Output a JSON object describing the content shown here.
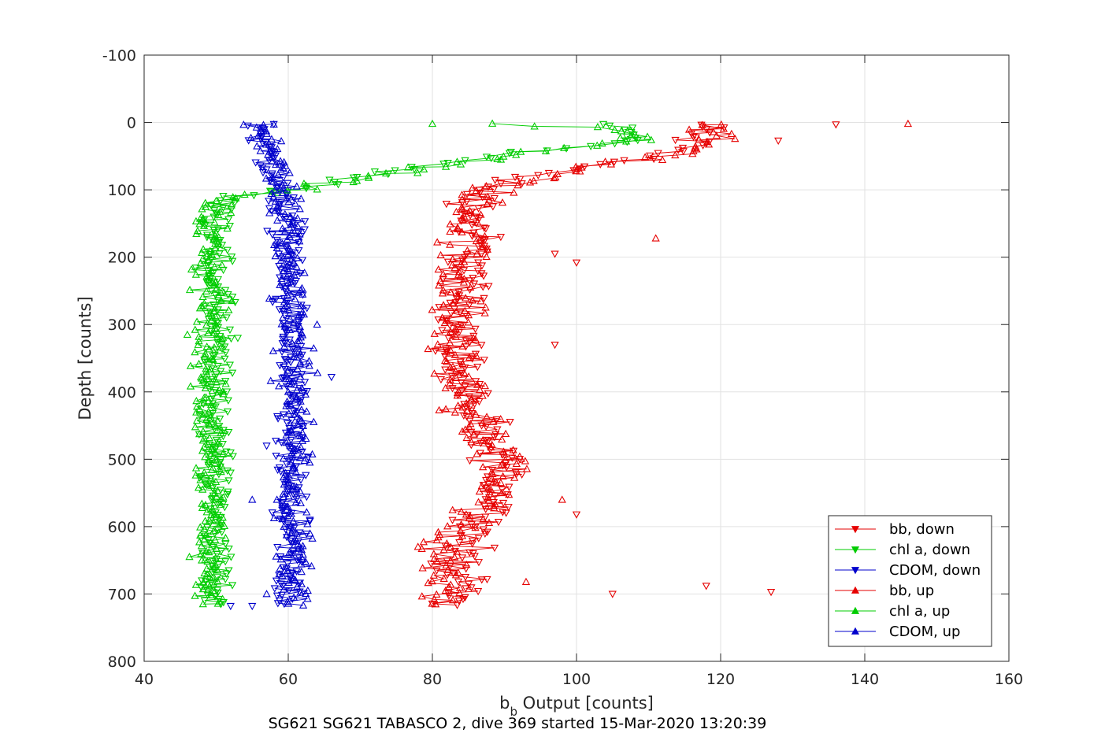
{
  "chart_data": {
    "type": "scatter",
    "title": "",
    "xlabel": "b",
    "xlabel_sub": "b",
    "xlabel_rest": " Output [counts]",
    "ylabel": "Depth [counts]",
    "caption": "SG621 SG621 TABASCO 2, dive 369 started 15-Mar-2020 13:20:39",
    "xlim": [
      40,
      160
    ],
    "ylim": [
      -100,
      800
    ],
    "y_reversed": true,
    "grid": true,
    "x_ticks": [
      40,
      60,
      80,
      100,
      120,
      140,
      160
    ],
    "x_tick_labels": [
      "40",
      "60",
      "80",
      "100",
      "120",
      "140",
      "160"
    ],
    "y_ticks": [
      -100,
      0,
      100,
      200,
      300,
      400,
      500,
      600,
      700,
      800
    ],
    "y_tick_labels": [
      "-100",
      "0",
      "100",
      "200",
      "300",
      "400",
      "500",
      "600",
      "700",
      "800"
    ],
    "legend_position": "bottom-right",
    "series": [
      {
        "name": "bb, down",
        "color": "#e60000",
        "marker": "triangle-down",
        "profile": [
          [
            2,
            117
          ],
          [
            10,
            118
          ],
          [
            20,
            116
          ],
          [
            30,
            116
          ],
          [
            40,
            115
          ],
          [
            50,
            112
          ],
          [
            60,
            104
          ],
          [
            70,
            98
          ],
          [
            80,
            94
          ],
          [
            90,
            89
          ],
          [
            100,
            87
          ],
          [
            120,
            86
          ],
          [
            150,
            86
          ],
          [
            200,
            86
          ],
          [
            250,
            84
          ],
          [
            300,
            84
          ],
          [
            350,
            84
          ],
          [
            400,
            85
          ],
          [
            450,
            86
          ],
          [
            480,
            87
          ],
          [
            500,
            89
          ],
          [
            550,
            90
          ],
          [
            580,
            88
          ],
          [
            600,
            87
          ],
          [
            620,
            85
          ],
          [
            650,
            84
          ],
          [
            680,
            84
          ],
          [
            700,
            84
          ],
          [
            718,
            84
          ]
        ],
        "spread": 2.2,
        "step": 3,
        "outliers": [
          [
            3,
            136
          ],
          [
            27,
            128
          ],
          [
            195,
            97
          ],
          [
            208,
            100
          ],
          [
            330,
            97
          ],
          [
            582,
            100
          ],
          [
            700,
            105
          ],
          [
            697,
            127
          ],
          [
            688,
            118
          ]
        ]
      },
      {
        "name": "chl a, down",
        "color": "#00cc00",
        "marker": "triangle-down",
        "profile": [
          [
            2,
            103
          ],
          [
            10,
            108
          ],
          [
            20,
            108
          ],
          [
            30,
            107
          ],
          [
            40,
            96
          ],
          [
            50,
            88
          ],
          [
            60,
            82
          ],
          [
            70,
            77
          ],
          [
            80,
            70
          ],
          [
            90,
            65
          ],
          [
            100,
            60
          ],
          [
            105,
            56
          ],
          [
            110,
            52
          ],
          [
            120,
            51
          ],
          [
            150,
            50
          ],
          [
            200,
            50
          ],
          [
            300,
            50
          ],
          [
            400,
            50
          ],
          [
            500,
            50
          ],
          [
            600,
            50
          ],
          [
            700,
            50
          ],
          [
            718,
            50
          ]
        ],
        "spread": 1.4,
        "step": 3,
        "outliers": [
          [
            320,
            53
          ],
          [
            490,
            52
          ],
          [
            520,
            52
          ],
          [
            680,
            48
          ]
        ]
      },
      {
        "name": "CDOM, down",
        "color": "#0000cc",
        "marker": "triangle-down",
        "profile": [
          [
            2,
            56
          ],
          [
            20,
            57
          ],
          [
            50,
            57
          ],
          [
            80,
            58
          ],
          [
            100,
            59
          ],
          [
            150,
            60
          ],
          [
            200,
            60
          ],
          [
            300,
            60
          ],
          [
            400,
            60
          ],
          [
            500,
            60
          ],
          [
            600,
            60
          ],
          [
            700,
            60
          ],
          [
            718,
            60
          ]
        ],
        "spread": 1.5,
        "step": 3,
        "outliers": [
          [
            378,
            66
          ],
          [
            480,
            57
          ],
          [
            590,
            63
          ],
          [
            718,
            55
          ],
          [
            718,
            52
          ]
        ]
      },
      {
        "name": "bb, up",
        "color": "#e60000",
        "marker": "triangle-up",
        "profile": [
          [
            2,
            120
          ],
          [
            10,
            119
          ],
          [
            20,
            118
          ],
          [
            30,
            118
          ],
          [
            40,
            116
          ],
          [
            50,
            114
          ],
          [
            60,
            105
          ],
          [
            70,
            100
          ],
          [
            80,
            96
          ],
          [
            90,
            91
          ],
          [
            100,
            88
          ],
          [
            120,
            86
          ],
          [
            150,
            85
          ],
          [
            200,
            84
          ],
          [
            250,
            84
          ],
          [
            300,
            83
          ],
          [
            350,
            83
          ],
          [
            400,
            84
          ],
          [
            450,
            86
          ],
          [
            480,
            88
          ],
          [
            500,
            91
          ],
          [
            550,
            88
          ],
          [
            580,
            86
          ],
          [
            600,
            84
          ],
          [
            620,
            82
          ],
          [
            650,
            82
          ],
          [
            680,
            82
          ],
          [
            700,
            82
          ],
          [
            718,
            81
          ]
        ],
        "spread": 2.4,
        "step": 3,
        "outliers": [
          [
            2,
            146
          ],
          [
            172,
            111
          ],
          [
            682,
            93
          ],
          [
            560,
            98
          ],
          [
            630,
            78
          ]
        ]
      },
      {
        "name": "chl a, up",
        "color": "#00cc00",
        "marker": "triangle-up",
        "profile": [
          [
            2,
            91
          ],
          [
            10,
            106
          ],
          [
            20,
            109
          ],
          [
            30,
            107
          ],
          [
            40,
            99
          ],
          [
            50,
            90
          ],
          [
            60,
            84
          ],
          [
            70,
            78
          ],
          [
            80,
            72
          ],
          [
            90,
            66
          ],
          [
            100,
            61
          ],
          [
            105,
            56
          ],
          [
            110,
            52
          ],
          [
            120,
            50
          ],
          [
            150,
            49
          ],
          [
            200,
            49
          ],
          [
            300,
            49
          ],
          [
            400,
            49
          ],
          [
            500,
            49
          ],
          [
            600,
            49
          ],
          [
            700,
            49
          ],
          [
            718,
            49
          ]
        ],
        "spread": 1.6,
        "step": 3,
        "outliers": [
          [
            2,
            80
          ],
          [
            315,
            46
          ],
          [
            650,
            48
          ],
          [
            380,
            48
          ]
        ]
      },
      {
        "name": "CDOM, up",
        "color": "#0000cc",
        "marker": "triangle-up",
        "profile": [
          [
            2,
            56
          ],
          [
            20,
            57
          ],
          [
            50,
            58
          ],
          [
            80,
            58
          ],
          [
            100,
            59
          ],
          [
            150,
            60
          ],
          [
            200,
            60
          ],
          [
            300,
            61
          ],
          [
            400,
            61
          ],
          [
            500,
            61
          ],
          [
            600,
            61
          ],
          [
            700,
            61
          ],
          [
            718,
            61
          ]
        ],
        "spread": 1.6,
        "step": 3,
        "outliers": [
          [
            3,
            58
          ],
          [
            700,
            57
          ],
          [
            560,
            55
          ],
          [
            300,
            64
          ]
        ]
      }
    ]
  }
}
